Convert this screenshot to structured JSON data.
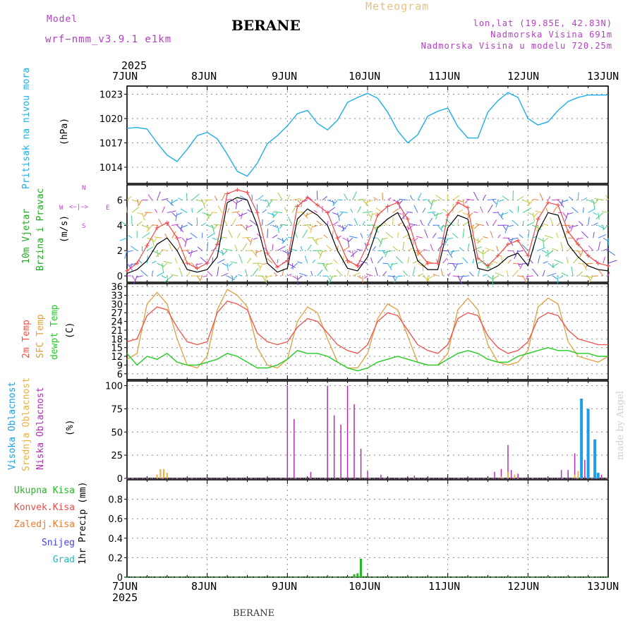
{
  "header": {
    "model_label": "Model",
    "model_name": "wrf−nmm_v3.9.1  e1km",
    "station": "BERANE",
    "meteogram": "Meteogram",
    "lonlat": "lon,lat (19.85E, 42.83N)",
    "elevation": "Nadmorska Visina 691m",
    "model_elevation": "Nadmorska Visina u modelu 720.25m",
    "footer_station": "BERANE",
    "watermark": "made by Angel"
  },
  "time_axis": {
    "year": "2025",
    "days": [
      "7JUN",
      "8JUN",
      "9JUN",
      "10JUN",
      "11JUN",
      "12JUN",
      "13JUN"
    ]
  },
  "colors": {
    "pressure": "#1eaee8",
    "temp2m": "#f0504a",
    "sfc_temp": "#e0a040",
    "dewpoint": "#22cc22",
    "high_cloud": "#1e9ee8",
    "mid_cloud": "#e8b040",
    "low_cloud": "#b030b0",
    "total_rain": "#22bb22",
    "conv_rain": "#f04848",
    "frz_rain": "#f07828",
    "snow": "#4444dd",
    "graupel": "#22bbbb",
    "wind_label": "#22aa22",
    "dir_label": "#c040d0"
  },
  "panels": {
    "pressure": {
      "label1": "Pritisak na nivou mora",
      "unit": "(hPa)",
      "yticks": [
        "1023",
        "1020",
        "1017",
        "1014"
      ]
    },
    "wind": {
      "label1": "10m Vjetar",
      "label2": "Brzina i Pravac",
      "unit": "(m/s)",
      "yticks": [
        "6",
        "4",
        "2",
        "0"
      ],
      "compass": {
        "n": "N",
        "w": "W",
        "e": "E",
        "s": "S"
      }
    },
    "temp": {
      "label1": "2m Temp",
      "label2": "SFC Temp",
      "label3": "dewpt Temp",
      "unit": "(C)",
      "yticks": [
        "36",
        "33",
        "30",
        "27",
        "24",
        "21",
        "18",
        "15",
        "12",
        "9",
        "6"
      ]
    },
    "cloud": {
      "label1": "Visoka Oblacnost",
      "label2": "Srednja Oblacnost",
      "label3": "Niska Oblacnost",
      "unit": "(%)",
      "yticks": [
        "100",
        "75",
        "50",
        "25",
        "0"
      ]
    },
    "precip": {
      "legend": [
        "Ukupna Kisa",
        "Konvek.Kisa",
        "Zaledj.Kisa",
        "Snijeg",
        "Grad"
      ],
      "unit": "1hr Precip (mm)",
      "yticks": [
        "0.8",
        "0.6",
        "0.4",
        "0.2",
        "0"
      ]
    }
  },
  "chart_data": [
    {
      "type": "line",
      "panel": "pressure",
      "ylim": [
        1012,
        1024
      ],
      "x_hours_from_7jun": [
        0,
        3,
        6,
        9,
        12,
        15,
        18,
        21,
        24,
        27,
        30,
        33,
        36,
        39,
        42,
        45,
        48,
        51,
        54,
        57,
        60,
        63,
        66,
        69,
        72,
        75,
        78,
        81,
        84,
        87,
        90,
        93,
        96,
        99,
        102,
        105,
        108,
        111,
        114,
        117,
        120,
        123,
        126,
        129,
        132,
        135,
        138,
        141,
        144
      ],
      "series": [
        {
          "values": [
            1018.8,
            1018.9,
            1018.7,
            1017.0,
            1015.5,
            1014.7,
            1016.2,
            1017.9,
            1018.3,
            1017.5,
            1015.6,
            1013.5,
            1012.9,
            1014.5,
            1016.9,
            1017.9,
            1019.1,
            1020.6,
            1021.0,
            1019.4,
            1018.6,
            1019.8,
            1022.0,
            1022.6,
            1023.1,
            1022.5,
            1020.8,
            1018.5,
            1017.0,
            1018.0,
            1020.3,
            1020.9,
            1021.3,
            1019.0,
            1017.6,
            1017.6,
            1020.8,
            1022.2,
            1023.2,
            1022.6,
            1020.0,
            1019.2,
            1019.6,
            1021.0,
            1022.1,
            1022.6,
            1022.9,
            1022.9,
            1022.9
          ]
        }
      ]
    },
    {
      "type": "line",
      "panel": "wind",
      "ylim": [
        -0.5,
        7.2
      ],
      "x_hours_from_7jun": [
        0,
        3,
        6,
        9,
        12,
        15,
        18,
        21,
        24,
        27,
        30,
        33,
        36,
        39,
        42,
        45,
        48,
        51,
        54,
        57,
        60,
        63,
        66,
        69,
        72,
        75,
        78,
        81,
        84,
        87,
        90,
        93,
        96,
        99,
        102,
        105,
        108,
        111,
        114,
        117,
        120,
        123,
        126,
        129,
        132,
        135,
        138,
        141,
        144
      ],
      "series": [
        {
          "name": "speed",
          "values": [
            0.2,
            0.5,
            1.2,
            2.5,
            3.0,
            2.0,
            0.5,
            0.3,
            0.5,
            1.5,
            5.8,
            6.2,
            6.0,
            4.0,
            1.0,
            0.3,
            0.6,
            4.5,
            5.3,
            4.8,
            4.0,
            2.0,
            0.6,
            0.4,
            1.5,
            3.8,
            4.5,
            5.0,
            3.5,
            1.2,
            0.5,
            0.5,
            3.8,
            4.8,
            4.5,
            0.6,
            0.4,
            0.8,
            1.5,
            1.8,
            0.8,
            3.5,
            5.0,
            4.8,
            2.5,
            1.5,
            0.8,
            0.5,
            0.4
          ]
        },
        {
          "name": "gust",
          "values": [
            0.4,
            1.0,
            2.4,
            3.8,
            4.2,
            3.0,
            1.0,
            0.6,
            1.0,
            2.5,
            6.5,
            6.8,
            6.6,
            5.0,
            1.8,
            0.7,
            1.2,
            5.5,
            6.2,
            5.6,
            5.0,
            3.0,
            1.2,
            0.8,
            2.5,
            4.8,
            5.5,
            5.8,
            4.5,
            2.0,
            1.0,
            1.0,
            4.8,
            5.8,
            5.4,
            1.4,
            0.8,
            1.6,
            2.5,
            2.8,
            1.6,
            4.5,
            5.8,
            5.6,
            3.5,
            2.5,
            1.6,
            1.0,
            0.8
          ]
        }
      ]
    },
    {
      "type": "line",
      "panel": "temp",
      "ylim": [
        4,
        37
      ],
      "x_hours_from_7jun": [
        0,
        3,
        6,
        9,
        12,
        15,
        18,
        21,
        24,
        27,
        30,
        33,
        36,
        39,
        42,
        45,
        48,
        51,
        54,
        57,
        60,
        63,
        66,
        69,
        72,
        75,
        78,
        81,
        84,
        87,
        90,
        93,
        96,
        99,
        102,
        105,
        108,
        111,
        114,
        117,
        120,
        123,
        126,
        129,
        132,
        135,
        138,
        141,
        144
      ],
      "series": [
        {
          "name": "2m Temp",
          "values": [
            17,
            18,
            26,
            29,
            28,
            22,
            17,
            16,
            17,
            27,
            31,
            30,
            28,
            20,
            17,
            16,
            17,
            22,
            25,
            24,
            20,
            16,
            14,
            13,
            16,
            24,
            27,
            26,
            21,
            16,
            14,
            13,
            16,
            25,
            27,
            26,
            19,
            15,
            13,
            14,
            17,
            25,
            27,
            26,
            21,
            18,
            17,
            16,
            16
          ]
        },
        {
          "name": "SFC Temp",
          "values": [
            11,
            13,
            30,
            34,
            30,
            18,
            9,
            8,
            12,
            28,
            35,
            33,
            29,
            15,
            9,
            8,
            11,
            24,
            29,
            27,
            18,
            10,
            8,
            8,
            13,
            25,
            30,
            28,
            19,
            10,
            9,
            9,
            13,
            28,
            32,
            28,
            16,
            10,
            9,
            10,
            14,
            29,
            32,
            30,
            17,
            12,
            11,
            10,
            12
          ]
        },
        {
          "name": "dewpt Temp",
          "values": [
            13,
            9,
            12,
            11,
            13,
            10,
            9,
            9,
            10,
            11,
            13,
            12,
            10,
            8,
            8,
            9,
            11,
            14,
            13,
            13,
            12,
            10,
            8,
            7,
            8,
            10,
            11,
            12,
            11,
            10,
            9,
            9,
            11,
            13,
            14,
            13,
            11,
            10,
            10,
            12,
            13,
            14,
            15,
            14,
            14,
            13,
            13,
            12,
            12
          ]
        }
      ]
    },
    {
      "type": "bar",
      "panel": "cloud",
      "ylim": [
        0,
        105
      ],
      "series": [
        {
          "name": "Niska Oblacnost",
          "x_hours_from_7jun": [
            10,
            11,
            48,
            50,
            55,
            60,
            62,
            64,
            66,
            68,
            70,
            72,
            76,
            86,
            110,
            112,
            114,
            115,
            117,
            130,
            132,
            134,
            137,
            140,
            142
          ],
          "values": [
            9,
            7,
            100,
            64,
            7,
            100,
            68,
            58,
            100,
            80,
            32,
            8,
            4,
            3,
            7,
            10,
            36,
            9,
            5,
            9,
            9,
            27,
            20,
            5,
            4
          ]
        },
        {
          "name": "Srednja Oblacnost",
          "x_hours_from_7jun": [
            9,
            10,
            11,
            12,
            112,
            114,
            116,
            134,
            135,
            138
          ],
          "values": [
            4,
            10,
            10,
            6,
            2,
            7,
            4,
            4,
            8,
            6
          ]
        },
        {
          "name": "Visoka Oblacnost",
          "x_hours_from_7jun": [
            136,
            138,
            140,
            141
          ],
          "values": [
            86,
            75,
            42,
            6
          ]
        }
      ]
    },
    {
      "type": "bar",
      "panel": "precip",
      "ylim": [
        0,
        1.0
      ],
      "series": [
        {
          "name": "Ukupna Kisa",
          "x_hours_from_7jun": [
            68,
            69,
            70,
            71
          ],
          "values": [
            0.03,
            0.04,
            0.19,
            0.01
          ]
        }
      ]
    }
  ]
}
